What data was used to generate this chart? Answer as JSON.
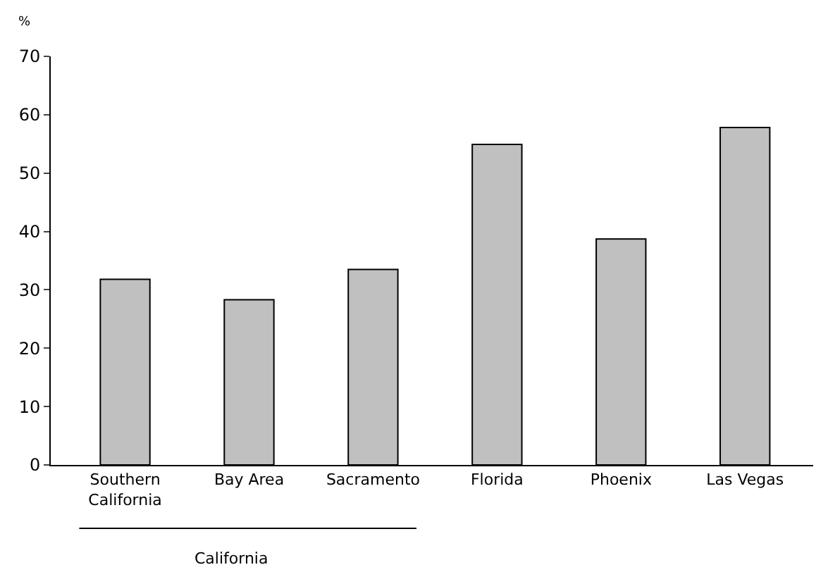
{
  "chart_data": {
    "type": "bar",
    "ylabel": "%",
    "categories": [
      "Southern California",
      "Bay Area",
      "Sacramento",
      "Florida",
      "Phoenix",
      "Las Vegas"
    ],
    "values": [
      31.8,
      28.3,
      33.5,
      54.9,
      38.7,
      57.8
    ],
    "color": "#c0c0c0",
    "ylim": [
      0,
      70
    ],
    "yticks": [
      0,
      10,
      20,
      30,
      40,
      50,
      60,
      70
    ],
    "annotations": [
      "California"
    ]
  }
}
